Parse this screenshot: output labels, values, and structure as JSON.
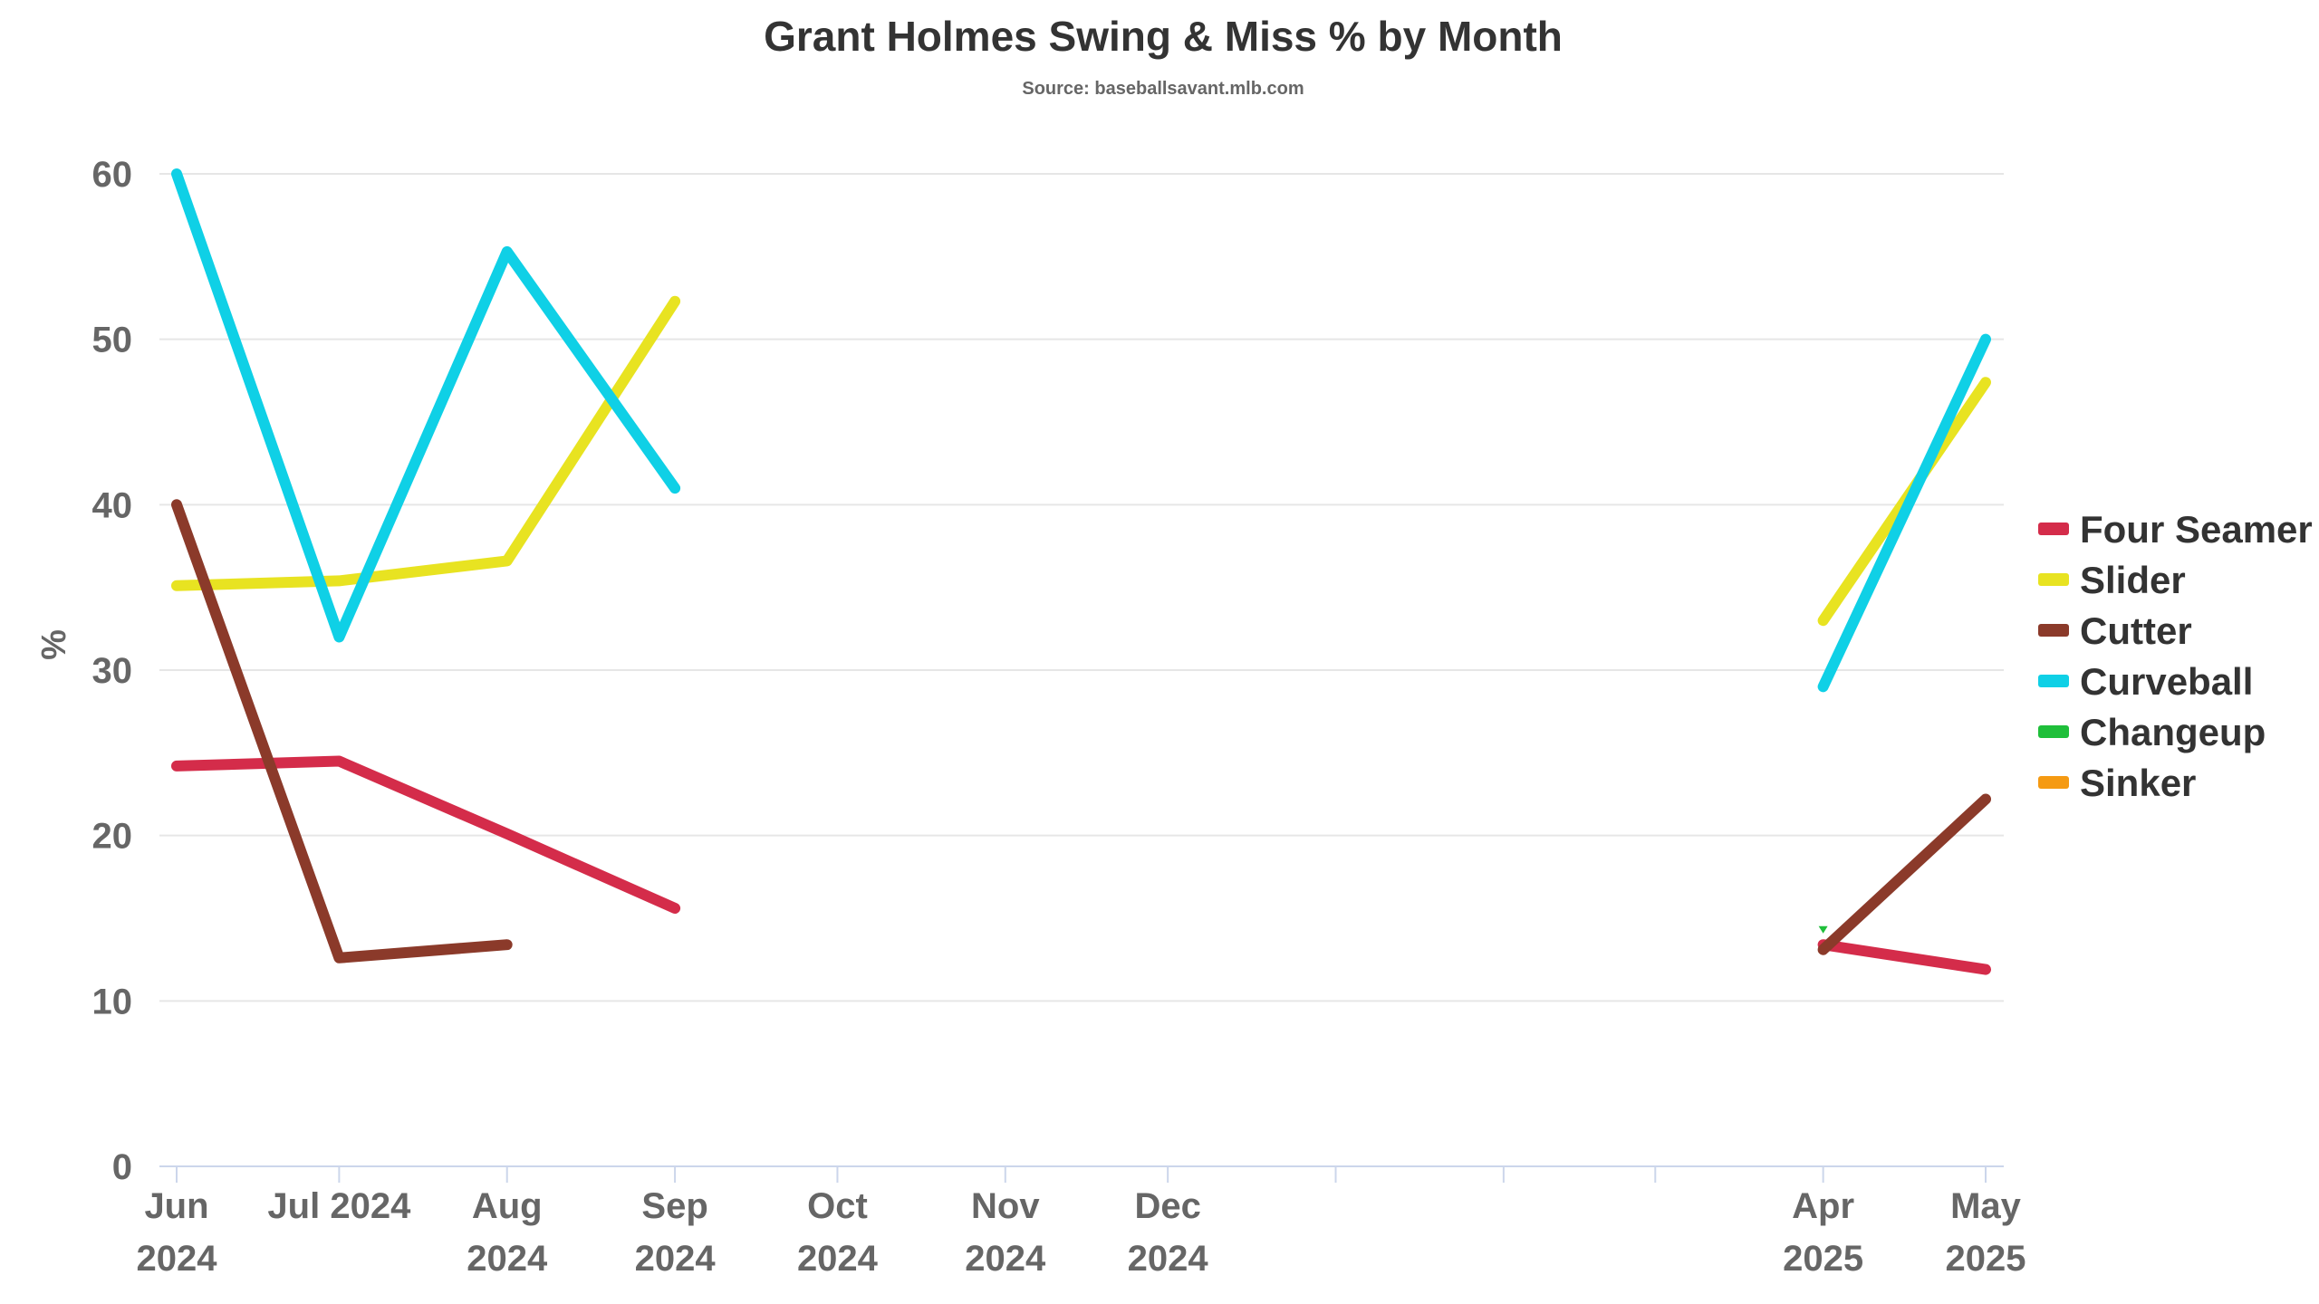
{
  "chart_data": {
    "type": "line",
    "title": "Grant Holmes Swing & Miss % by Month",
    "subtitle": "Source: baseballsavant.mlb.com",
    "ylabel": "%",
    "xlabel": "",
    "ylim": [
      0,
      60
    ],
    "yticks": [
      0,
      10,
      20,
      30,
      40,
      50,
      60
    ],
    "grid": true,
    "legend_position": "right",
    "x_axis": {
      "type": "datetime",
      "range": [
        "2024-06-01",
        "2025-05-01"
      ],
      "labeled_ticks": [
        {
          "date": "2024-06-01",
          "label": [
            "Jun",
            "2024"
          ]
        },
        {
          "date": "2024-07-01",
          "label": [
            "Jul 2024"
          ]
        },
        {
          "date": "2024-08-01",
          "label": [
            "Aug",
            "2024"
          ]
        },
        {
          "date": "2024-09-01",
          "label": [
            "Sep",
            "2024"
          ]
        },
        {
          "date": "2024-10-01",
          "label": [
            "Oct",
            "2024"
          ]
        },
        {
          "date": "2024-11-01",
          "label": [
            "Nov",
            "2024"
          ]
        },
        {
          "date": "2024-12-01",
          "label": [
            "Dec",
            "2024"
          ]
        },
        {
          "date": "2025-04-01",
          "label": [
            "Apr",
            "2025"
          ]
        },
        {
          "date": "2025-05-01",
          "label": [
            "May",
            "2025"
          ]
        }
      ],
      "unlabeled_ticks": [
        "2025-01-01",
        "2025-02-01",
        "2025-03-01"
      ]
    },
    "series": [
      {
        "name": "Four Seamer",
        "color": "#d42c4a",
        "points": [
          {
            "x": "2024-06-01",
            "y": 24.2
          },
          {
            "x": "2024-07-01",
            "y": 24.5
          },
          {
            "x": "2024-08-01",
            "y": 20.1
          },
          {
            "x": "2024-09-01",
            "y": 15.6
          },
          {
            "x": "2025-04-01",
            "y": 13.4
          },
          {
            "x": "2025-05-01",
            "y": 11.9
          }
        ]
      },
      {
        "name": "Slider",
        "color": "#e8e321",
        "points": [
          {
            "x": "2024-06-01",
            "y": 35.1
          },
          {
            "x": "2024-07-01",
            "y": 35.4
          },
          {
            "x": "2024-08-01",
            "y": 36.6
          },
          {
            "x": "2024-09-01",
            "y": 52.3
          },
          {
            "x": "2025-04-01",
            "y": 33.0
          },
          {
            "x": "2025-05-01",
            "y": 47.4
          }
        ]
      },
      {
        "name": "Cutter",
        "color": "#8b3a2a",
        "points": [
          {
            "x": "2024-06-01",
            "y": 40.0
          },
          {
            "x": "2024-07-01",
            "y": 12.6
          },
          {
            "x": "2024-08-01",
            "y": 13.4
          },
          {
            "x": "2025-04-01",
            "y": 13.1
          },
          {
            "x": "2025-05-01",
            "y": 22.2
          }
        ]
      },
      {
        "name": "Curveball",
        "color": "#0fd0e6",
        "points": [
          {
            "x": "2024-06-01",
            "y": 60.0
          },
          {
            "x": "2024-07-01",
            "y": 32.0
          },
          {
            "x": "2024-08-01",
            "y": 55.3
          },
          {
            "x": "2024-09-01",
            "y": 41.0
          },
          {
            "x": "2025-04-01",
            "y": 29.0
          },
          {
            "x": "2025-05-01",
            "y": 50.0
          }
        ]
      },
      {
        "name": "Changeup",
        "color": "#1fbf3a",
        "points": [
          {
            "x": "2025-04-01",
            "y": 14.3
          }
        ]
      },
      {
        "name": "Sinker",
        "color": "#f59a12",
        "points": []
      }
    ]
  }
}
